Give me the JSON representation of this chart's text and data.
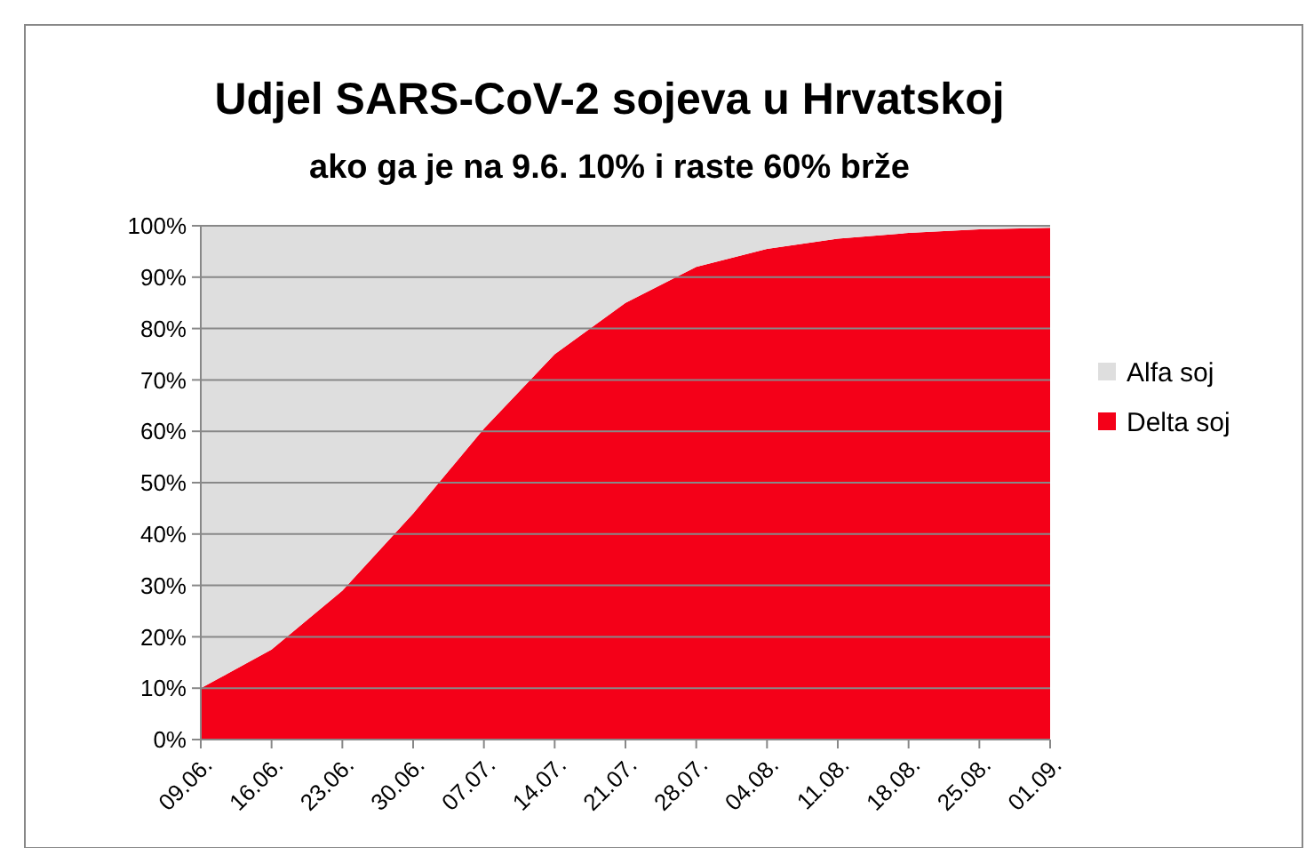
{
  "chart_data": {
    "type": "area",
    "title": "Udjel SARS-CoV-2 sojeva u Hrvatskoj",
    "subtitle": "ako ga je na 9.6. 10% i raste 60% brže",
    "categories": [
      "09.06.",
      "16.06.",
      "23.06.",
      "30.06.",
      "07.07.",
      "14.07.",
      "21.07.",
      "28.07.",
      "04.08.",
      "11.08.",
      "18.08.",
      "25.08.",
      "01.09."
    ],
    "series": [
      {
        "name": "Delta soj",
        "color": "#f40018",
        "values": [
          10,
          17.5,
          29,
          44,
          60.5,
          75,
          85,
          92,
          95.5,
          97.5,
          98.6,
          99.3,
          99.6
        ]
      },
      {
        "name": "Alfa soj",
        "color": "#dedede",
        "values": [
          90,
          82.5,
          71,
          56,
          39.5,
          25,
          15,
          8,
          4.5,
          2.5,
          1.4,
          0.7,
          0.4
        ]
      }
    ],
    "stacked": true,
    "ylim": [
      0,
      100
    ],
    "yticks": [
      {
        "value": 0,
        "label": "0%"
      },
      {
        "value": 10,
        "label": "10%"
      },
      {
        "value": 20,
        "label": "20%"
      },
      {
        "value": 30,
        "label": "30%"
      },
      {
        "value": 40,
        "label": "40%"
      },
      {
        "value": 50,
        "label": "50%"
      },
      {
        "value": 60,
        "label": "60%"
      },
      {
        "value": 70,
        "label": "70%"
      },
      {
        "value": 80,
        "label": "80%"
      },
      {
        "value": 90,
        "label": "90%"
      },
      {
        "value": 100,
        "label": "100%"
      }
    ],
    "grid": "y",
    "legend": "right"
  }
}
